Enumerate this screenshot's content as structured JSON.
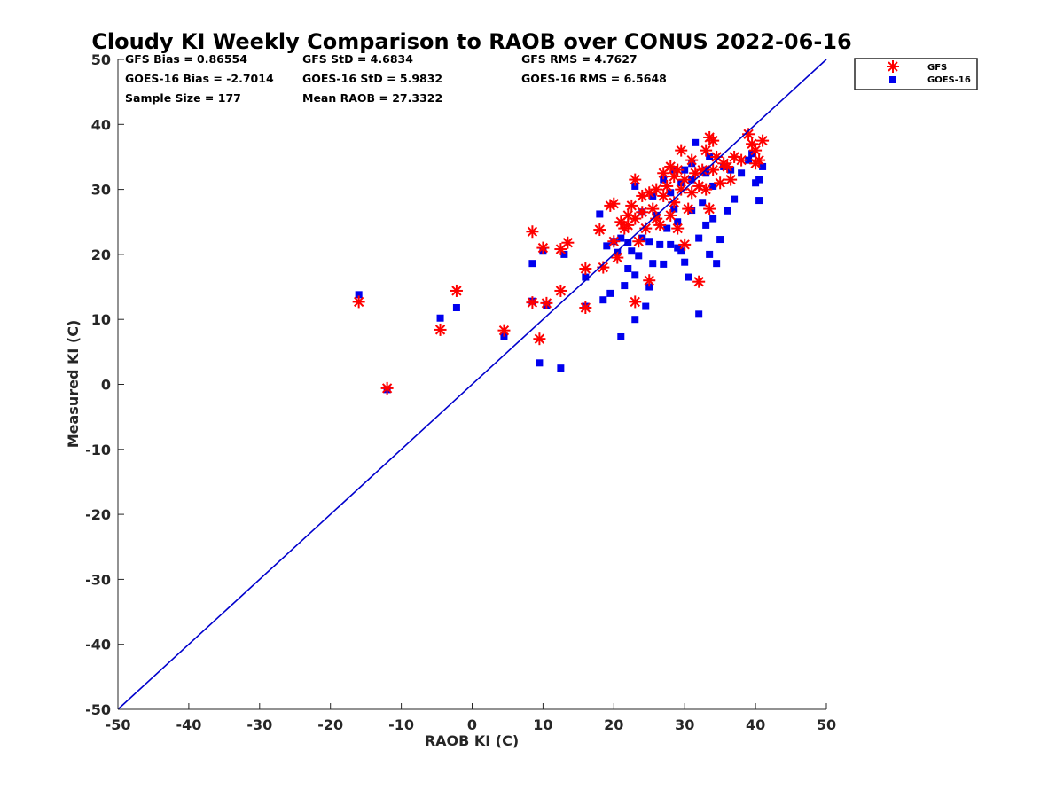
{
  "chart_data": {
    "type": "scatter",
    "title": "Cloudy KI Weekly Comparison to RAOB over CONUS 2022-06-16",
    "xlabel": "RAOB KI (C)",
    "ylabel": "Measured KI (C)",
    "xlim": [
      -50,
      50
    ],
    "ylim": [
      -50,
      50
    ],
    "xticks": [
      "-50",
      "-40",
      "-30",
      "-20",
      "-10",
      "0",
      "10",
      "20",
      "30",
      "40",
      "50"
    ],
    "yticks": [
      "50",
      "40",
      "30",
      "20",
      "10",
      "0",
      "-10",
      "-20",
      "-30",
      "-40",
      "-50"
    ],
    "grid": false,
    "legend_position": "outside-top-right",
    "stats": [
      "GFS Bias = 0.86554",
      "GFS StD = 4.6834",
      "GFS RMS = 4.7627",
      "GOES-16 Bias = -2.7014",
      "GOES-16 StD = 5.9832",
      "GOES-16 RMS = 6.5648",
      "Sample Size = 177",
      "Mean RAOB = 27.3322"
    ],
    "reference_line": {
      "x": [
        -50,
        50
      ],
      "y": [
        -50,
        50
      ],
      "color": "#0000cc"
    },
    "series": [
      {
        "name": "GFS",
        "marker": "asterisk",
        "color": "#ff0000",
        "points": [
          [
            -16,
            12.7
          ],
          [
            -12,
            -0.6
          ],
          [
            -4.5,
            8.4
          ],
          [
            -2.2,
            14.4
          ],
          [
            4.5,
            8.3
          ],
          [
            8.5,
            23.5
          ],
          [
            8.5,
            12.6
          ],
          [
            9.5,
            7
          ],
          [
            10,
            21
          ],
          [
            10.5,
            12.5
          ],
          [
            12.5,
            20.8
          ],
          [
            12.5,
            14.4
          ],
          [
            13.5,
            21.8
          ],
          [
            16,
            17.8
          ],
          [
            16,
            11.8
          ],
          [
            18,
            23.8
          ],
          [
            18.5,
            18
          ],
          [
            19.5,
            27.5
          ],
          [
            20,
            22
          ],
          [
            20,
            27.8
          ],
          [
            20.5,
            19.5
          ],
          [
            21,
            25
          ],
          [
            21.5,
            24
          ],
          [
            22,
            26
          ],
          [
            22,
            24.5
          ],
          [
            22.5,
            27.5
          ],
          [
            23,
            31.5
          ],
          [
            23,
            25.5
          ],
          [
            23,
            12.7
          ],
          [
            23.5,
            22
          ],
          [
            24,
            29
          ],
          [
            24,
            26.5
          ],
          [
            24.5,
            24
          ],
          [
            25,
            29.5
          ],
          [
            25,
            16
          ],
          [
            25.5,
            27
          ],
          [
            26,
            30
          ],
          [
            26,
            25.5
          ],
          [
            26.5,
            24.5
          ],
          [
            27,
            32.5
          ],
          [
            27,
            29
          ],
          [
            27.5,
            30.5
          ],
          [
            28,
            33.5
          ],
          [
            28,
            26
          ],
          [
            28.5,
            32
          ],
          [
            28.5,
            28
          ],
          [
            29,
            33
          ],
          [
            29,
            24
          ],
          [
            29.5,
            36
          ],
          [
            29.5,
            30
          ],
          [
            30,
            31.5
          ],
          [
            30,
            21.5
          ],
          [
            30.5,
            27
          ],
          [
            31,
            34.5
          ],
          [
            31,
            29.5
          ],
          [
            31.5,
            32.5
          ],
          [
            32,
            15.8
          ],
          [
            32,
            30.5
          ],
          [
            32.5,
            33
          ],
          [
            33,
            36
          ],
          [
            33,
            30
          ],
          [
            33.5,
            38
          ],
          [
            33.5,
            27
          ],
          [
            34,
            37.5
          ],
          [
            34,
            33
          ],
          [
            34.5,
            35
          ],
          [
            35,
            31
          ],
          [
            35.5,
            34
          ],
          [
            36,
            33.5
          ],
          [
            36.5,
            31.5
          ],
          [
            37,
            35
          ],
          [
            38,
            34.5
          ],
          [
            39,
            38.5
          ],
          [
            39.5,
            37
          ],
          [
            40,
            36
          ],
          [
            40.5,
            34.5
          ],
          [
            41,
            37.5
          ],
          [
            40,
            34
          ]
        ]
      },
      {
        "name": "GOES-16",
        "marker": "square",
        "color": "#0000ee",
        "points": [
          [
            -16,
            13.8
          ],
          [
            -12,
            -0.8
          ],
          [
            -4.5,
            10.2
          ],
          [
            -2.2,
            11.8
          ],
          [
            4.5,
            7.4
          ],
          [
            8.5,
            18.6
          ],
          [
            8.5,
            12.8
          ],
          [
            9.5,
            3.3
          ],
          [
            10,
            20.5
          ],
          [
            10.5,
            12.2
          ],
          [
            12.5,
            2.5
          ],
          [
            13,
            20
          ],
          [
            16,
            16.5
          ],
          [
            16,
            12
          ],
          [
            18,
            26.2
          ],
          [
            18.5,
            13
          ],
          [
            19,
            21.3
          ],
          [
            19.5,
            14
          ],
          [
            20,
            22
          ],
          [
            20.5,
            20.3
          ],
          [
            21,
            7.3
          ],
          [
            21,
            22.5
          ],
          [
            21.5,
            15.2
          ],
          [
            22,
            21.8
          ],
          [
            22,
            17.8
          ],
          [
            22.5,
            20.5
          ],
          [
            23,
            30.5
          ],
          [
            23,
            16.8
          ],
          [
            23,
            10
          ],
          [
            23.5,
            19.8
          ],
          [
            24,
            26.5
          ],
          [
            24,
            22.5
          ],
          [
            24.5,
            12
          ],
          [
            25,
            15
          ],
          [
            25,
            22
          ],
          [
            25.5,
            18.6
          ],
          [
            25.5,
            29
          ],
          [
            26,
            26
          ],
          [
            26.5,
            21.5
          ],
          [
            27,
            31.5
          ],
          [
            27,
            18.5
          ],
          [
            27.5,
            24
          ],
          [
            28,
            29.5
          ],
          [
            28,
            21.5
          ],
          [
            28.5,
            33
          ],
          [
            28.5,
            27
          ],
          [
            29,
            25
          ],
          [
            29,
            21
          ],
          [
            29.5,
            31
          ],
          [
            29.5,
            20.5
          ],
          [
            30,
            33
          ],
          [
            30,
            18.8
          ],
          [
            30.5,
            16.5
          ],
          [
            31,
            31.5
          ],
          [
            31,
            26.8
          ],
          [
            31.5,
            37.2
          ],
          [
            32,
            10.8
          ],
          [
            32,
            22.5
          ],
          [
            32.5,
            28
          ],
          [
            33,
            32.5
          ],
          [
            33,
            24.5
          ],
          [
            33.5,
            35
          ],
          [
            33.5,
            20
          ],
          [
            34,
            30.5
          ],
          [
            34,
            25.5
          ],
          [
            34.5,
            18.6
          ],
          [
            35,
            22.3
          ],
          [
            35.5,
            33.5
          ],
          [
            36,
            26.7
          ],
          [
            36.5,
            33
          ],
          [
            37,
            28.5
          ],
          [
            38,
            32.5
          ],
          [
            39,
            34.5
          ],
          [
            39.5,
            35.5
          ],
          [
            40,
            31
          ],
          [
            40.5,
            31.5
          ],
          [
            40.5,
            28.3
          ],
          [
            41,
            33.5
          ],
          [
            33,
            33
          ],
          [
            31,
            34
          ]
        ]
      }
    ]
  }
}
